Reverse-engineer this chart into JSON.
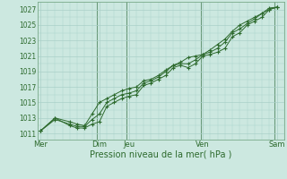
{
  "title": "Pression niveau de la mer( hPa )",
  "background_color": "#cce8e0",
  "grid_color": "#aad0c8",
  "line_color": "#2d6a2d",
  "marker_color": "#2d6a2d",
  "vline_color": "#4a7a5a",
  "yticks": [
    1011,
    1013,
    1015,
    1017,
    1019,
    1021,
    1023,
    1025,
    1027
  ],
  "ylim": [
    1010.2,
    1028.0
  ],
  "xtick_labels": [
    "Mer",
    "Dim",
    "Jeu",
    "Ven",
    "Sam"
  ],
  "xtick_positions": [
    0,
    4,
    6,
    11,
    16
  ],
  "line1_x": [
    0,
    1,
    2,
    2.5,
    3,
    3.5,
    4,
    4.5,
    5,
    5.5,
    6,
    6.5,
    7,
    7.5,
    8,
    8.5,
    9,
    9.5,
    10,
    10.5,
    11,
    11.5,
    12,
    12.5,
    13,
    13.5,
    14,
    14.5,
    15,
    15.5,
    16
  ],
  "line1_y": [
    1011.3,
    1013.0,
    1012.0,
    1011.7,
    1011.7,
    1012.2,
    1012.5,
    1014.5,
    1015.0,
    1015.5,
    1015.8,
    1016.0,
    1017.2,
    1017.5,
    1018.0,
    1018.5,
    1019.5,
    1019.8,
    1019.5,
    1020.0,
    1021.0,
    1021.2,
    1021.5,
    1022.0,
    1023.5,
    1024.0,
    1025.0,
    1025.5,
    1026.0,
    1027.0,
    1027.3
  ],
  "line2_x": [
    0,
    1,
    2,
    2.5,
    3,
    3.5,
    4,
    4.5,
    5,
    5.5,
    6,
    6.5,
    7,
    7.5,
    8,
    8.5,
    9,
    9.5,
    10,
    10.5,
    11,
    11.5,
    12,
    12.5,
    13,
    13.5,
    14,
    14.5,
    15,
    15.5,
    16
  ],
  "line2_y": [
    1011.3,
    1012.8,
    1012.2,
    1011.9,
    1011.9,
    1012.8,
    1013.5,
    1015.0,
    1015.5,
    1016.0,
    1016.2,
    1016.5,
    1017.5,
    1017.8,
    1018.3,
    1019.0,
    1019.8,
    1020.0,
    1020.0,
    1020.5,
    1021.2,
    1021.5,
    1022.0,
    1022.8,
    1024.0,
    1024.5,
    1025.2,
    1025.8,
    1026.5,
    1027.2,
    1027.3
  ],
  "line3_x": [
    0,
    1,
    2,
    2.5,
    3,
    3.5,
    4,
    4.5,
    5,
    5.5,
    6,
    6.5,
    7,
    7.5,
    8,
    8.5,
    9,
    9.5,
    10,
    10.5,
    11,
    11.5,
    12,
    12.5,
    13,
    13.5,
    14,
    14.5,
    15,
    15.5,
    16
  ],
  "line3_y": [
    1011.3,
    1013.0,
    1012.5,
    1012.2,
    1012.0,
    1013.5,
    1015.0,
    1015.5,
    1016.0,
    1016.5,
    1016.8,
    1017.0,
    1017.8,
    1018.0,
    1018.5,
    1019.2,
    1019.8,
    1020.2,
    1020.8,
    1021.0,
    1021.2,
    1021.8,
    1022.5,
    1023.2,
    1024.2,
    1025.0,
    1025.5,
    1026.0,
    1026.5,
    1027.0,
    1027.3
  ],
  "vline_positions": [
    3.85,
    5.85,
    10.85,
    15.85
  ],
  "xlim": [
    -0.2,
    16.5
  ]
}
